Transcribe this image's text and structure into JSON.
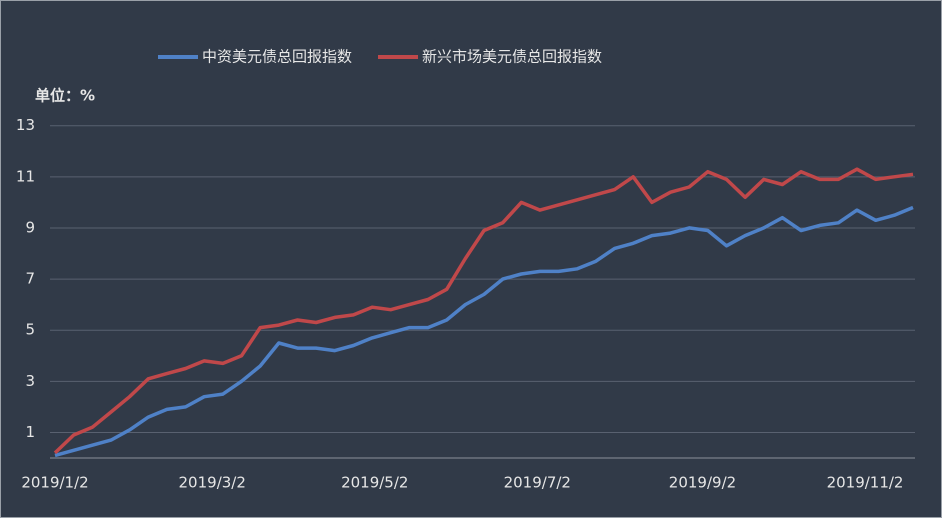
{
  "chart_data": {
    "type": "line",
    "unit_label": "单位：%",
    "x": [
      "2019/1/2",
      "2019/1/9",
      "2019/1/16",
      "2019/1/23",
      "2019/1/30",
      "2019/2/6",
      "2019/2/13",
      "2019/2/20",
      "2019/2/27",
      "2019/3/6",
      "2019/3/13",
      "2019/3/20",
      "2019/3/27",
      "2019/4/3",
      "2019/4/10",
      "2019/4/17",
      "2019/4/24",
      "2019/5/1",
      "2019/5/8",
      "2019/5/15",
      "2019/5/22",
      "2019/5/29",
      "2019/6/5",
      "2019/6/12",
      "2019/6/19",
      "2019/6/26",
      "2019/7/3",
      "2019/7/10",
      "2019/7/17",
      "2019/7/24",
      "2019/7/31",
      "2019/8/7",
      "2019/8/14",
      "2019/8/21",
      "2019/8/28",
      "2019/9/4",
      "2019/9/11",
      "2019/9/18",
      "2019/9/25",
      "2019/10/2",
      "2019/10/9",
      "2019/10/16",
      "2019/10/23",
      "2019/10/30",
      "2019/11/6",
      "2019/11/13",
      "2019/11/20"
    ],
    "series": [
      {
        "name": "中资美元债总回报指数",
        "color": "#4f81c7",
        "values": [
          0.1,
          0.3,
          0.5,
          0.7,
          1.1,
          1.6,
          1.9,
          2.0,
          2.4,
          2.5,
          3.0,
          3.6,
          4.5,
          4.3,
          4.3,
          4.2,
          4.4,
          4.7,
          4.9,
          5.1,
          5.1,
          5.4,
          6.0,
          6.4,
          7.0,
          7.2,
          7.3,
          7.3,
          7.4,
          7.7,
          8.2,
          8.4,
          8.7,
          8.8,
          9.0,
          8.9,
          8.3,
          8.7,
          9.0,
          9.4,
          8.9,
          9.1,
          9.2,
          9.7,
          9.3,
          9.5,
          9.8
        ]
      },
      {
        "name": "新兴市场美元债总回报指数",
        "color": "#c0484a",
        "values": [
          0.2,
          0.9,
          1.2,
          1.8,
          2.4,
          3.1,
          3.3,
          3.5,
          3.8,
          3.7,
          4.0,
          5.1,
          5.2,
          5.4,
          5.3,
          5.5,
          5.6,
          5.9,
          5.8,
          6.0,
          6.2,
          6.6,
          7.8,
          8.9,
          9.2,
          10.0,
          9.7,
          9.9,
          10.1,
          10.3,
          10.5,
          11.0,
          10.0,
          10.4,
          10.6,
          11.2,
          10.9,
          10.2,
          10.9,
          10.7,
          11.2,
          10.9,
          10.9,
          11.3,
          10.9,
          11.0,
          11.1
        ]
      }
    ],
    "xlim": [
      "2019/1/2",
      "2019/11/20"
    ],
    "xticks": [
      "2019/1/2",
      "2019/3/2",
      "2019/5/2",
      "2019/7/2",
      "2019/9/2",
      "2019/11/2"
    ],
    "ylim": [
      0,
      13
    ],
    "yticks": [
      1,
      3,
      5,
      7,
      9,
      11,
      13
    ],
    "grid": true
  }
}
